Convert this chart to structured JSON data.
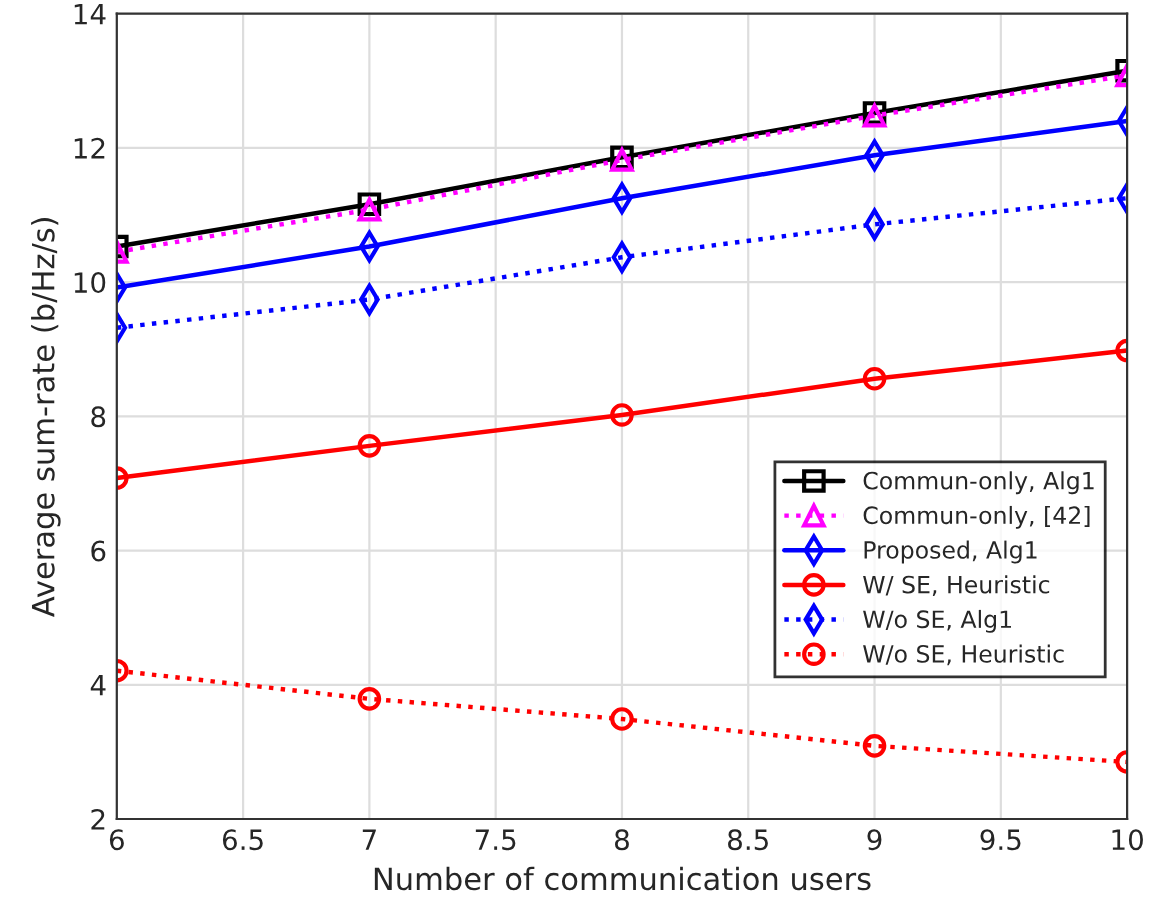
{
  "chart_data": {
    "type": "line",
    "xlabel": "Number of communication users",
    "ylabel": "Average sum-rate (b/Hz/s)",
    "x": [
      6,
      7,
      8,
      9,
      10
    ],
    "xlim": [
      6,
      10
    ],
    "xticks": [
      6,
      6.5,
      7,
      7.5,
      8,
      8.5,
      9,
      9.5,
      10
    ],
    "ylim": [
      2,
      14
    ],
    "yticks": [
      2,
      4,
      6,
      8,
      10,
      12,
      14
    ],
    "grid": true,
    "legend": "right",
    "series": [
      {
        "name": "Commun-only, Alg1",
        "color": "#000000",
        "marker": "square",
        "line_style": "solid",
        "values": [
          10.53,
          11.16,
          11.86,
          12.52,
          13.15
        ]
      },
      {
        "name": "Commun-only, [42]",
        "color": "#ff00ff",
        "marker": "triangle",
        "line_style": "dotted",
        "values": [
          10.45,
          11.08,
          11.82,
          12.48,
          13.08
        ]
      },
      {
        "name": "Proposed, Alg1",
        "color": "#0000ff",
        "marker": "diamond",
        "line_style": "solid",
        "values": [
          9.92,
          10.53,
          11.25,
          11.89,
          12.4
        ]
      },
      {
        "name": "W/ SE, Heuristic",
        "color": "#ff0000",
        "marker": "circle",
        "line_style": "solid",
        "values": [
          7.08,
          7.56,
          8.02,
          8.56,
          8.98
        ]
      },
      {
        "name": "W/o SE, Alg1",
        "color": "#0000ff",
        "marker": "diamond",
        "line_style": "dotted",
        "values": [
          9.32,
          9.74,
          10.37,
          10.86,
          11.25
        ]
      },
      {
        "name": "W/o SE, Heuristic",
        "color": "#ff0000",
        "marker": "circle",
        "line_style": "dotted",
        "values": [
          4.21,
          3.79,
          3.49,
          3.09,
          2.85
        ]
      }
    ]
  }
}
